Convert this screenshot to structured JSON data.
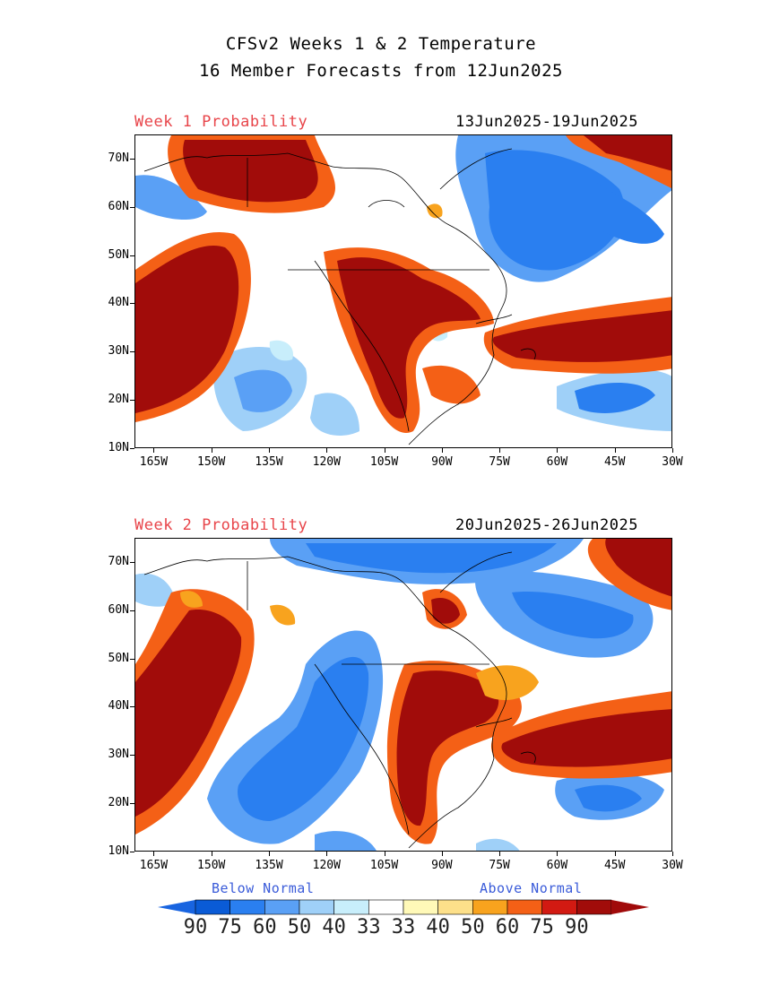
{
  "header": {
    "title_line1": "CFSv2 Weeks 1 & 2 Temperature",
    "title_line2": "16 Member Forecasts from 12Jun2025"
  },
  "panels": [
    {
      "label": "Week 1 Probability",
      "date_range": "13Jun2025-19Jun2025"
    },
    {
      "label": "Week 2 Probability",
      "date_range": "20Jun2025-26Jun2025"
    }
  ],
  "axes": {
    "lat_labels": [
      "70N",
      "60N",
      "50N",
      "40N",
      "30N",
      "20N",
      "10N"
    ],
    "lon_labels": [
      "165W",
      "150W",
      "135W",
      "120W",
      "105W",
      "90W",
      "75W",
      "60W",
      "45W",
      "30W"
    ]
  },
  "legend": {
    "below_label": "Below Normal",
    "above_label": "Above Normal",
    "values": [
      "90",
      "75",
      "60",
      "50",
      "40",
      "33",
      "33",
      "40",
      "50",
      "60",
      "75",
      "90"
    ],
    "colors": [
      "#0a5bd6",
      "#2a7ff0",
      "#5aa0f5",
      "#9fd0f8",
      "#c8eefb",
      "#ffffff",
      "#fff9b8",
      "#fde08a",
      "#f8a31e",
      "#f46016",
      "#d21a12",
      "#a10c0a"
    ],
    "arrow_left_color": "#1864e0",
    "arrow_right_color": "#a00a0a"
  }
}
